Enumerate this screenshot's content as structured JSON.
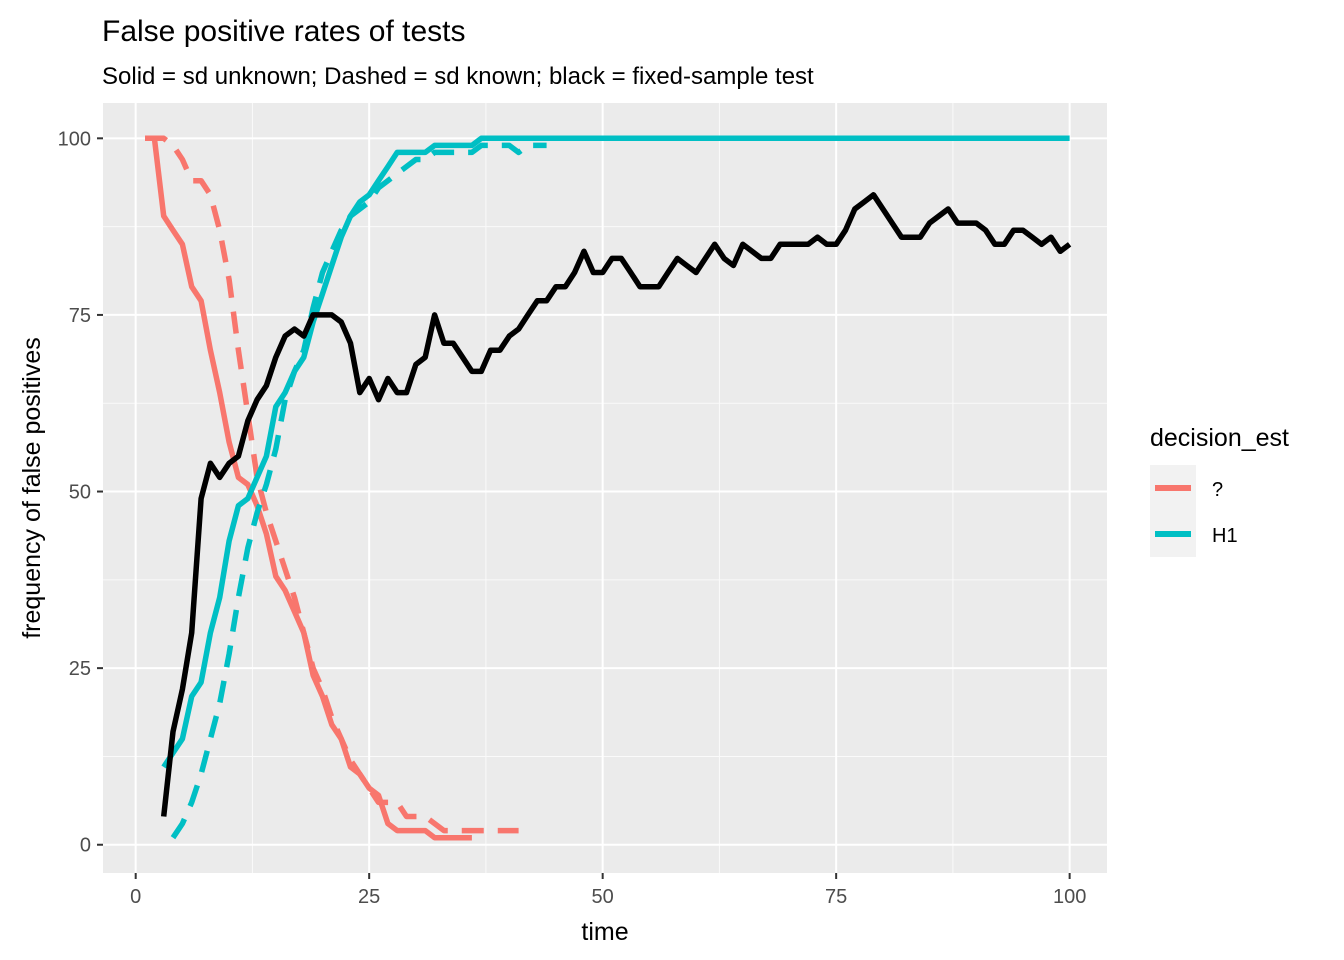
{
  "chart_data": {
    "type": "line",
    "title": "False positive rates of tests",
    "subtitle": "Solid = sd unknown; Dashed = sd known; black = fixed-sample test",
    "xlabel": "time",
    "ylabel": "frequency of false positives",
    "xlim": [
      -3.5,
      104
    ],
    "ylim": [
      -4,
      105
    ],
    "x_ticks": [
      0,
      25,
      50,
      75,
      100
    ],
    "y_ticks": [
      0,
      25,
      50,
      75,
      100
    ],
    "grid": true,
    "background": "#ebebeb",
    "legend": {
      "title": "decision_est",
      "position": "right",
      "entries": [
        {
          "label": "?",
          "color": "#f8766d"
        },
        {
          "label": "H1",
          "color": "#00bfc4"
        }
      ]
    },
    "series": [
      {
        "group": "?",
        "linetype": "solid",
        "color": "#f8766d",
        "x": [
          2,
          3,
          4,
          5,
          6,
          7,
          8,
          9,
          10,
          11,
          12,
          13,
          14,
          15,
          16,
          17,
          18,
          19,
          20,
          21,
          22,
          23,
          24,
          25,
          26,
          27,
          28,
          29,
          30,
          31,
          32,
          33,
          34,
          35,
          36
        ],
        "y": [
          100,
          89,
          87,
          85,
          79,
          77,
          70,
          64,
          57,
          52,
          51,
          48,
          44,
          38,
          36,
          33,
          30,
          24,
          21,
          17,
          15,
          11,
          10,
          8,
          7,
          3,
          2,
          2,
          2,
          2,
          1,
          1,
          1,
          1,
          1
        ]
      },
      {
        "group": "?",
        "linetype": "dashed",
        "color": "#f8766d",
        "x": [
          1,
          2,
          3,
          4,
          5,
          6,
          7,
          8,
          9,
          10,
          11,
          12,
          13,
          14,
          15,
          16,
          17,
          18,
          19,
          20,
          21,
          22,
          23,
          24,
          25,
          26,
          27,
          28,
          29,
          30,
          31,
          32,
          33,
          34,
          35,
          36,
          37,
          38,
          39,
          40,
          41
        ],
        "y": [
          100,
          100,
          100,
          99,
          97,
          94,
          94,
          92,
          87,
          80,
          70,
          61,
          52,
          47,
          43,
          39,
          35,
          30,
          25,
          22,
          18,
          15,
          12,
          10,
          8,
          6,
          6,
          6,
          4,
          4,
          4,
          3,
          2,
          2,
          2,
          2,
          2,
          2,
          2,
          2,
          2
        ]
      },
      {
        "group": "H1",
        "linetype": "solid",
        "color": "#00bfc4",
        "x": [
          3,
          4,
          5,
          6,
          7,
          8,
          9,
          10,
          11,
          12,
          13,
          14,
          15,
          16,
          17,
          18,
          19,
          20,
          21,
          22,
          23,
          24,
          25,
          26,
          27,
          28,
          29,
          30,
          31,
          32,
          33,
          34,
          35,
          36,
          37,
          38,
          39,
          40,
          45,
          50,
          60,
          70,
          80,
          90,
          100
        ],
        "y": [
          11,
          13,
          15,
          21,
          23,
          30,
          35,
          43,
          48,
          49,
          52,
          55,
          62,
          64,
          67,
          69,
          74,
          78,
          82,
          86,
          89,
          91,
          92,
          94,
          96,
          98,
          98,
          98,
          98,
          99,
          99,
          99,
          99,
          99,
          100,
          100,
          100,
          100,
          100,
          100,
          100,
          100,
          100,
          100,
          100
        ]
      },
      {
        "group": "H1",
        "linetype": "dashed",
        "color": "#00bfc4",
        "x": [
          4,
          5,
          6,
          7,
          8,
          9,
          10,
          11,
          12,
          13,
          14,
          15,
          16,
          17,
          18,
          19,
          20,
          21,
          22,
          23,
          24,
          25,
          26,
          27,
          28,
          29,
          30,
          31,
          32,
          33,
          34,
          35,
          36,
          37,
          38,
          39,
          40,
          41,
          42,
          43,
          44
        ],
        "y": [
          1,
          3,
          6,
          10,
          15,
          20,
          27,
          35,
          42,
          47,
          51,
          56,
          63,
          67,
          70,
          76,
          81,
          84,
          87,
          89,
          90,
          91,
          93,
          94,
          95,
          96,
          97,
          97,
          98,
          98,
          98,
          98,
          98,
          99,
          99,
          99,
          99,
          98,
          99,
          99,
          99
        ]
      },
      {
        "group": "fixed-sample test",
        "linetype": "solid",
        "color": "#000000",
        "x": [
          3,
          4,
          5,
          6,
          7,
          8,
          9,
          10,
          11,
          12,
          13,
          14,
          15,
          16,
          17,
          18,
          19,
          20,
          21,
          22,
          23,
          24,
          25,
          26,
          27,
          28,
          29,
          30,
          31,
          32,
          33,
          34,
          35,
          36,
          37,
          38,
          39,
          40,
          41,
          42,
          43,
          44,
          45,
          46,
          47,
          48,
          49,
          50,
          51,
          52,
          53,
          54,
          55,
          56,
          57,
          58,
          59,
          60,
          61,
          62,
          63,
          64,
          65,
          66,
          67,
          68,
          69,
          70,
          71,
          72,
          73,
          74,
          75,
          76,
          77,
          78,
          79,
          80,
          81,
          82,
          83,
          84,
          85,
          86,
          87,
          88,
          89,
          90,
          91,
          92,
          93,
          94,
          95,
          96,
          97,
          98,
          99,
          100
        ],
        "y": [
          4,
          16,
          22,
          30,
          49,
          54,
          52,
          54,
          55,
          60,
          63,
          65,
          69,
          72,
          73,
          72,
          75,
          75,
          75,
          74,
          71,
          64,
          66,
          63,
          66,
          64,
          64,
          68,
          69,
          75,
          71,
          71,
          69,
          67,
          67,
          70,
          70,
          72,
          73,
          75,
          77,
          77,
          79,
          79,
          81,
          84,
          81,
          81,
          83,
          83,
          81,
          79,
          79,
          79,
          81,
          83,
          82,
          81,
          83,
          85,
          83,
          82,
          85,
          84,
          83,
          83,
          85,
          85,
          85,
          85,
          86,
          85,
          85,
          87,
          90,
          91,
          92,
          90,
          88,
          86,
          86,
          86,
          88,
          89,
          90,
          88,
          88,
          88,
          87,
          85,
          85,
          87,
          87,
          86,
          85,
          86,
          84,
          85
        ]
      }
    ]
  }
}
